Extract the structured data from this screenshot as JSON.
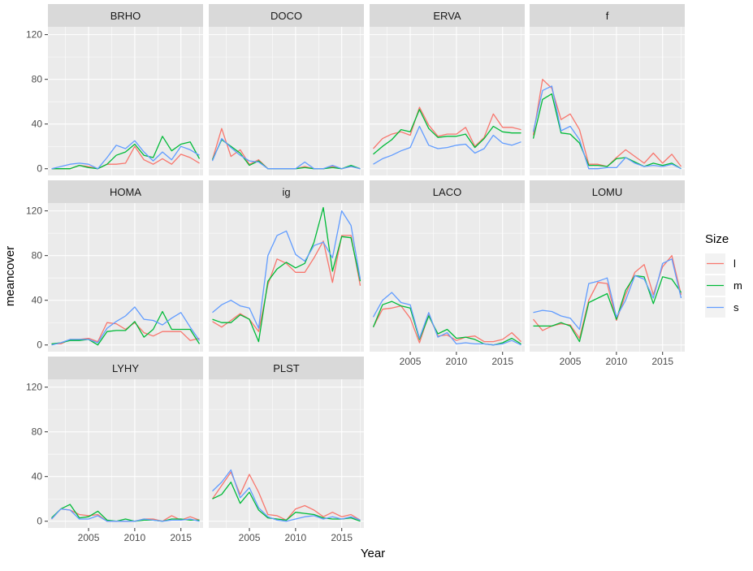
{
  "chart_data": {
    "type": "line",
    "xlabel": "Year",
    "ylabel": "meancover",
    "xlim": [
      2000.6,
      2017.4
    ],
    "ylim": [
      -6,
      127
    ],
    "x_ticks": [
      2005,
      2010,
      2015
    ],
    "y_ticks": [
      0,
      40,
      80,
      120
    ],
    "legend": {
      "title": "Size",
      "placement": "right",
      "entries": [
        "l",
        "m",
        "s"
      ]
    },
    "colors": {
      "l": "#F8766D",
      "m": "#00BA38",
      "s": "#619CFF"
    },
    "panel_background": "#EBEBEB",
    "strip_background": "#D9D9D9",
    "grid": true,
    "years": [
      2001,
      2002,
      2003,
      2004,
      2005,
      2006,
      2007,
      2008,
      2009,
      2010,
      2011,
      2012,
      2013,
      2014,
      2015,
      2016,
      2017
    ],
    "panels": [
      {
        "title": "BRHO",
        "series": [
          {
            "name": "l",
            "values": [
              0,
              0,
              0,
              3,
              2,
              0,
              4,
              4,
              5,
              20,
              8,
              4,
              9,
              4,
              13,
              10,
              5
            ]
          },
          {
            "name": "m",
            "values": [
              0,
              0,
              0,
              3,
              1,
              0,
              4,
              12,
              15,
              22,
              12,
              10,
              29,
              16,
              22,
              24,
              9
            ]
          },
          {
            "name": "s",
            "values": [
              0,
              2,
              4,
              5,
              4,
              0,
              10,
              21,
              18,
              25,
              15,
              7,
              15,
              8,
              20,
              17,
              12
            ]
          }
        ]
      },
      {
        "title": "DOCO",
        "series": [
          {
            "name": "l",
            "values": [
              8,
              36,
              11,
              17,
              4,
              8,
              0,
              0,
              0,
              0,
              2,
              0,
              0,
              2,
              0,
              2,
              0
            ]
          },
          {
            "name": "m",
            "values": [
              8,
              26,
              20,
              14,
              3,
              7,
              0,
              0,
              0,
              0,
              1,
              0,
              0,
              1,
              0,
              3,
              0
            ]
          },
          {
            "name": "s",
            "values": [
              7,
              27,
              19,
              12,
              7,
              6,
              0,
              0,
              0,
              0,
              6,
              0,
              0,
              3,
              0,
              2,
              0
            ]
          }
        ]
      },
      {
        "title": "ERVA",
        "series": [
          {
            "name": "l",
            "values": [
              18,
              27,
              31,
              33,
              30,
              55,
              39,
              29,
              31,
              31,
              37,
              20,
              28,
              49,
              37,
              37,
              35
            ]
          },
          {
            "name": "m",
            "values": [
              13,
              20,
              26,
              35,
              33,
              53,
              36,
              28,
              29,
              29,
              31,
              19,
              27,
              38,
              33,
              32,
              32
            ]
          },
          {
            "name": "s",
            "values": [
              4,
              9,
              12,
              16,
              19,
              38,
              21,
              18,
              19,
              21,
              22,
              14,
              18,
              30,
              23,
              21,
              24
            ]
          }
        ]
      },
      {
        "title": "f",
        "series": [
          {
            "name": "l",
            "values": [
              30,
              80,
              72,
              44,
              49,
              35,
              4,
              4,
              2,
              10,
              17,
              11,
              5,
              14,
              5,
              13,
              2
            ]
          },
          {
            "name": "m",
            "values": [
              27,
              62,
              67,
              32,
              31,
              23,
              3,
              3,
              2,
              9,
              10,
              6,
              2,
              5,
              3,
              5,
              0
            ]
          },
          {
            "name": "s",
            "values": [
              33,
              70,
              74,
              34,
              38,
              26,
              0,
              0,
              1,
              1,
              10,
              5,
              2,
              3,
              2,
              4,
              0
            ]
          }
        ]
      },
      {
        "title": "HOMA",
        "series": [
          {
            "name": "l",
            "values": [
              1,
              1,
              5,
              5,
              6,
              3,
              20,
              19,
              14,
              20,
              11,
              8,
              12,
              12,
              12,
              4,
              6
            ]
          },
          {
            "name": "m",
            "values": [
              1,
              2,
              4,
              4,
              5,
              0,
              12,
              13,
              13,
              21,
              7,
              14,
              30,
              14,
              14,
              14,
              1
            ]
          },
          {
            "name": "s",
            "values": [
              0,
              2,
              5,
              5,
              5,
              2,
              15,
              21,
              26,
              34,
              23,
              22,
              18,
              24,
              29,
              16,
              4
            ]
          }
        ]
      },
      {
        "title": "ig",
        "series": [
          {
            "name": "l",
            "values": [
              21,
              16,
              22,
              28,
              23,
              12,
              54,
              77,
              73,
              65,
              65,
              78,
              93,
              56,
              98,
              98,
              53
            ]
          },
          {
            "name": "m",
            "values": [
              23,
              20,
              20,
              27,
              23,
              3,
              57,
              68,
              74,
              69,
              73,
              92,
              123,
              66,
              97,
              96,
              57
            ]
          },
          {
            "name": "s",
            "values": [
              29,
              36,
              40,
              35,
              33,
              15,
              80,
              98,
              102,
              81,
              75,
              89,
              92,
              78,
              120,
              107,
              59
            ]
          }
        ]
      },
      {
        "title": "LACO",
        "series": [
          {
            "name": "l",
            "values": [
              16,
              32,
              33,
              35,
              24,
              2,
              27,
              8,
              9,
              4,
              7,
              8,
              3,
              3,
              5,
              11,
              3
            ]
          },
          {
            "name": "m",
            "values": [
              16,
              36,
              39,
              35,
              33,
              5,
              26,
              10,
              14,
              6,
              7,
              5,
              1,
              0,
              2,
              6,
              1
            ]
          },
          {
            "name": "s",
            "values": [
              25,
              40,
              47,
              38,
              36,
              6,
              29,
              7,
              11,
              1,
              2,
              1,
              1,
              0,
              1,
              4,
              0
            ]
          }
        ]
      },
      {
        "title": "LOMU",
        "series": [
          {
            "name": "l",
            "values": [
              23,
              13,
              17,
              19,
              18,
              6,
              40,
              56,
              55,
              22,
              45,
              65,
              72,
              45,
              70,
              80,
              45
            ]
          },
          {
            "name": "m",
            "values": [
              17,
              17,
              17,
              20,
              17,
              3,
              38,
              42,
              46,
              23,
              49,
              62,
              61,
              37,
              61,
              59,
              47
            ]
          },
          {
            "name": "s",
            "values": [
              29,
              31,
              30,
              26,
              24,
              14,
              55,
              57,
              60,
              25,
              40,
              62,
              59,
              42,
              73,
              77,
              42
            ]
          }
        ]
      },
      {
        "title": "LYHY",
        "series": [
          {
            "name": "l",
            "values": [
              2,
              11,
              10,
              6,
              5,
              6,
              0,
              0,
              0,
              0,
              2,
              2,
              0,
              5,
              1,
              4,
              1
            ]
          },
          {
            "name": "m",
            "values": [
              3,
              11,
              15,
              3,
              4,
              9,
              1,
              0,
              2,
              0,
              1,
              1,
              0,
              2,
              2,
              1,
              1
            ]
          },
          {
            "name": "s",
            "values": [
              2,
              11,
              10,
              2,
              2,
              5,
              0,
              0,
              0,
              0,
              2,
              1,
              0,
              1,
              1,
              2,
              0
            ]
          }
        ]
      },
      {
        "title": "PLST",
        "series": [
          {
            "name": "l",
            "values": [
              20,
              32,
              44,
              24,
              42,
              26,
              6,
              5,
              1,
              11,
              14,
              10,
              4,
              8,
              4,
              6,
              1
            ]
          },
          {
            "name": "m",
            "values": [
              20,
              24,
              35,
              16,
              26,
              10,
              3,
              2,
              1,
              8,
              7,
              6,
              3,
              2,
              2,
              3,
              0
            ]
          },
          {
            "name": "s",
            "values": [
              27,
              35,
              46,
              21,
              30,
              12,
              4,
              1,
              0,
              2,
              4,
              5,
              2,
              4,
              2,
              4,
              1
            ]
          }
        ]
      }
    ]
  }
}
